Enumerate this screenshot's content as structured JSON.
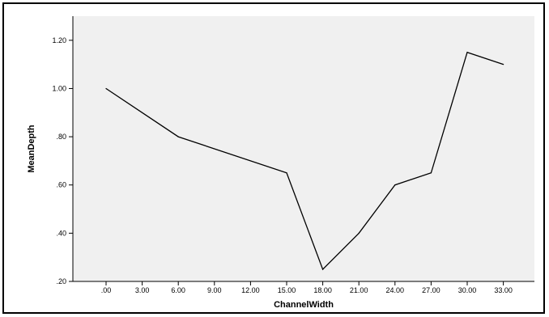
{
  "chart_data": {
    "type": "line",
    "title": "",
    "xlabel": "ChannelWidth",
    "ylabel": "MeanDepth",
    "x_ticks": [
      ".00",
      "3.00",
      "6.00",
      "9.00",
      "12.00",
      "15.00",
      "18.00",
      "21.00",
      "24.00",
      "27.00",
      "30.00",
      "33.00"
    ],
    "y_ticks": [
      ".20",
      ".40",
      ".60",
      ".80",
      "1.00",
      "1.20"
    ],
    "ylim": [
      0.2,
      1.3
    ],
    "grid": false,
    "x": [
      0,
      6,
      15,
      18,
      21,
      24,
      27,
      30,
      33
    ],
    "y": [
      1.0,
      0.8,
      0.65,
      0.25,
      0.4,
      0.6,
      0.65,
      1.15,
      1.1
    ],
    "colors": {
      "plot_background": "#f0f0f0",
      "line": "#000000",
      "axis": "#000000"
    }
  }
}
